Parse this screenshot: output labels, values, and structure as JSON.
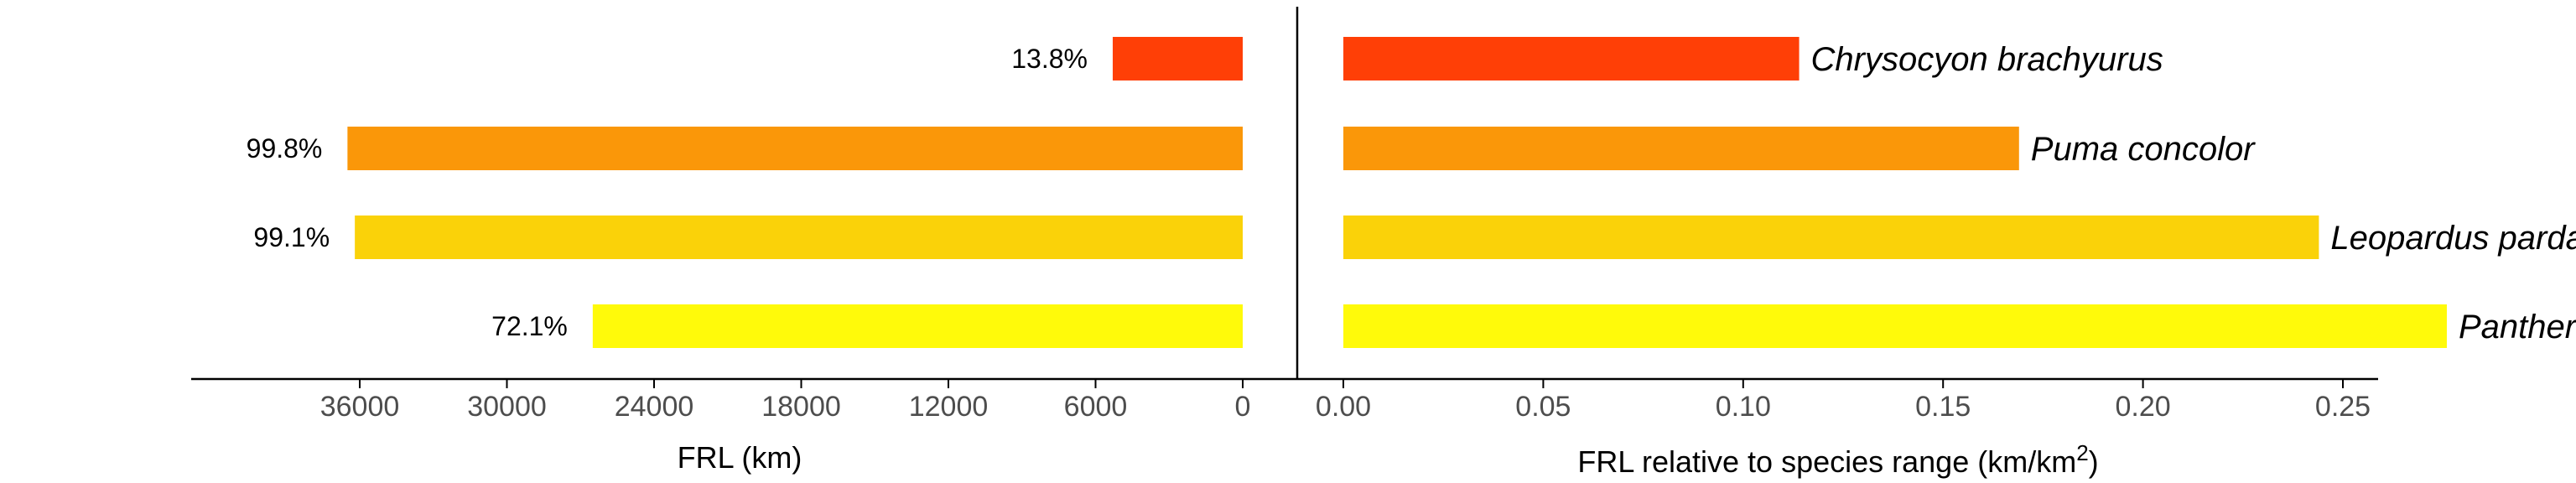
{
  "chart_data": [
    {
      "type": "bar",
      "orientation": "horizontal",
      "direction": "reversed",
      "categories": [
        "Chrysocyon brachyurus",
        "Puma concolor",
        "Leopardus pardalis",
        "Panthera onca"
      ],
      "values": [
        5300,
        36500,
        36200,
        26500
      ],
      "data_labels": [
        "13.8%",
        "99.8%",
        "99.1%",
        "72.1%"
      ],
      "colors": [
        "#FF3F06",
        "#FA9709",
        "#FAD209",
        "#FFFA0A"
      ],
      "xlabel": "FRL (km)",
      "xlim": [
        0,
        40000
      ],
      "xticks": [
        0,
        6000,
        12000,
        18000,
        24000,
        30000,
        36000
      ],
      "xtick_labels": [
        "0",
        "6000",
        "12000",
        "18000",
        "24000",
        "30000",
        "36000"
      ]
    },
    {
      "type": "bar",
      "orientation": "horizontal",
      "categories": [
        "Chrysocyon brachyurus",
        "Puma concolor",
        "Leopardus pardalis",
        "Panthera onca"
      ],
      "values": [
        0.114,
        0.169,
        0.244,
        0.276
      ],
      "colors": [
        "#FF3F06",
        "#FA9709",
        "#FAD209",
        "#FFFA0A"
      ],
      "xlabel_text": "FRL relative to species range (km/km",
      "xlabel_sup": "2",
      "xlabel_close": ")",
      "xlim": [
        0,
        0.29
      ],
      "xticks": [
        0,
        0.05,
        0.1,
        0.15,
        0.2,
        0.25
      ],
      "xtick_labels": [
        "0.00",
        "0.05",
        "0.10",
        "0.15",
        "0.20",
        "0.25"
      ]
    }
  ]
}
